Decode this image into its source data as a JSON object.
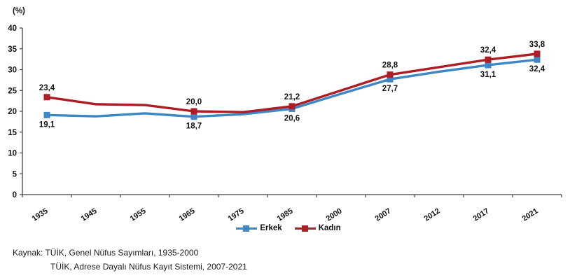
{
  "chart_data": {
    "type": "line",
    "unit_label": "(%)",
    "categories": [
      "1935",
      "1945",
      "1955",
      "1965",
      "1975",
      "1985",
      "2000",
      "2007",
      "2012",
      "2017",
      "2021"
    ],
    "series": [
      {
        "name": "Erkek",
        "color": "#3C87C4",
        "values": [
          19.1,
          18.8,
          19.5,
          18.7,
          19.3,
          20.6,
          24.2,
          27.7,
          29.5,
          31.1,
          32.4
        ],
        "point_labels": [
          "19,1",
          null,
          null,
          "18,7",
          null,
          "20,6",
          null,
          "27,7",
          null,
          "31,1",
          "32,4"
        ],
        "label_position": "below"
      },
      {
        "name": "Kadın",
        "color": "#AE1C24",
        "values": [
          23.4,
          21.7,
          21.5,
          20.0,
          19.8,
          21.2,
          25.0,
          28.8,
          30.6,
          32.4,
          33.8
        ],
        "point_labels": [
          "23,4",
          null,
          null,
          "20,0",
          null,
          "21,2",
          null,
          "28,8",
          null,
          "32,4",
          "33,8"
        ],
        "label_position": "above"
      }
    ],
    "ylim": [
      0,
      40
    ],
    "ytick_step": 5,
    "grid": false,
    "legend_position": "bottom",
    "axis_color": "#404040",
    "text_color": "#111111"
  },
  "source": {
    "line1": "Kaynak: TÜİK, Genel Nüfus Sayımları, 1935-2000",
    "line2": "TÜİK, Adrese Dayalı Nüfus Kayıt Sistemi, 2007-2021"
  }
}
